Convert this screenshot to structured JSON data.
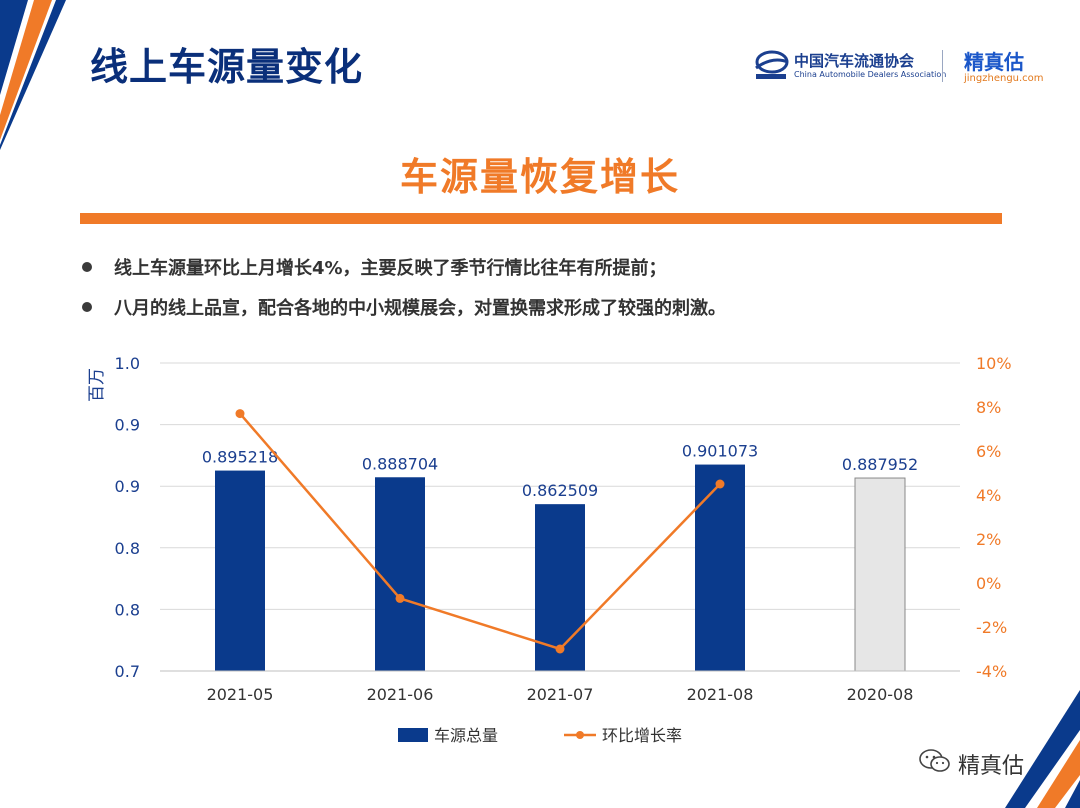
{
  "header": {
    "title": "线上车源量变化",
    "logo_cada_cn": "中国汽车流通协会",
    "logo_cada_en": "China Automobile Dealers Association",
    "logo_jzg_cn": "精真估",
    "logo_jzg_en": "jingzhengu.com"
  },
  "subtitle": "车源量恢复增长",
  "bullets": [
    "线上车源量环比上月增长4%，主要反映了季节行情比往年有所提前；",
    "八月的线上品宣，配合各地的中小规模展会，对置换需求形成了较强的刺激。"
  ],
  "footer": {
    "account": "精真估"
  },
  "colors": {
    "navy": "#0a3a8c",
    "orange": "#f07a28",
    "gray_bar": "#e6e6e6"
  },
  "chart_data": {
    "type": "bar+line",
    "categories": [
      "2021-05",
      "2021-06",
      "2021-07",
      "2021-08",
      "2020-08"
    ],
    "series": [
      {
        "name": "车源总量",
        "type": "bar",
        "axis": "left",
        "values": [
          0.895218,
          0.888704,
          0.862509,
          0.901073,
          0.887952
        ],
        "labels": [
          "0.895218",
          "0.888704",
          "0.862509",
          "0.901073",
          "0.887952"
        ],
        "highlight_last_gray": true
      },
      {
        "name": "环比增长率",
        "type": "line",
        "axis": "right",
        "values": [
          7.7,
          -0.7,
          -3.0,
          4.5,
          null
        ]
      }
    ],
    "ylabel": "百万",
    "ylim_left": [
      0.7,
      1.0
    ],
    "left_tick_labels": [
      "0.7",
      "0.8",
      "0.8",
      "0.9",
      "0.9",
      "1.0"
    ],
    "left_tick_values": [
      0.7,
      0.75,
      0.8,
      0.85,
      0.9,
      0.95
    ],
    "ylim_right": [
      -4,
      10
    ],
    "right_tick_values": [
      -4,
      -2,
      0,
      2,
      4,
      6,
      8,
      10
    ],
    "right_tick_labels": [
      "-4%",
      "-2%",
      "0%",
      "2%",
      "4%",
      "6%",
      "8%",
      "10%"
    ],
    "legend_position": "bottom",
    "grid": true
  }
}
